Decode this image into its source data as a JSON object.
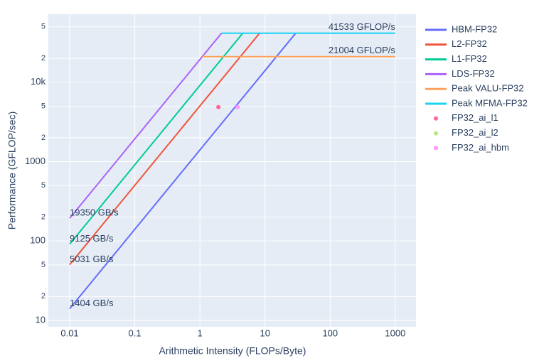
{
  "chart_data": {
    "type": "line",
    "xlabel": "Arithmetic Intensity (FLOPs/Byte)",
    "ylabel": "Performance (GFLOP/sec)",
    "xscale": "log",
    "yscale": "log",
    "xlim": [
      0.0047,
      2080
    ],
    "ylim": [
      8.3,
      72000
    ],
    "xticks": [
      0.01,
      0.1,
      1,
      10,
      100,
      1000
    ],
    "yticks": [
      10,
      {
        "value": 20,
        "label": "2"
      },
      {
        "value": 50,
        "label": "5"
      },
      100,
      {
        "value": 200,
        "label": "2"
      },
      {
        "value": 500,
        "label": "5"
      },
      1000,
      {
        "value": 2000,
        "label": "2"
      },
      {
        "value": 5000,
        "label": "5"
      },
      {
        "value": 10000,
        "label": "10k"
      },
      {
        "value": 20000,
        "label": "2"
      },
      {
        "value": 50000,
        "label": "5"
      }
    ],
    "grid": true,
    "legend": "right",
    "series": [
      {
        "name": "HBM-FP32",
        "color": "#636efa",
        "mode": "lines",
        "label": "1404 GB/s",
        "x": [
          0.01,
          29.58
        ],
        "values": [
          14.04,
          41533
        ]
      },
      {
        "name": "L2-FP32",
        "color": "#ef553b",
        "mode": "lines",
        "label": "5031 GB/s",
        "x": [
          0.01,
          8.255
        ],
        "values": [
          50.31,
          41533
        ]
      },
      {
        "name": "L1-FP32",
        "color": "#00cc96",
        "mode": "lines",
        "label": "9125 GB/s",
        "x": [
          0.01,
          4.552
        ],
        "values": [
          91.25,
          41533
        ]
      },
      {
        "name": "LDS-FP32",
        "color": "#ab63fa",
        "mode": "lines",
        "label": "19350 GB/s",
        "x": [
          0.01,
          2.146
        ],
        "values": [
          193.5,
          41533
        ]
      },
      {
        "name": "Peak VALU-FP32",
        "color": "#ffa15a",
        "mode": "lines",
        "label": "21004 GFLOP/s",
        "x": [
          1.085,
          1000
        ],
        "values": [
          21004,
          21004
        ]
      },
      {
        "name": "Peak MFMA-FP32",
        "color": "#19d3f3",
        "mode": "lines",
        "label": "41533 GFLOP/s",
        "x": [
          2.146,
          1000
        ],
        "values": [
          41533,
          41533
        ]
      },
      {
        "name": "FP32_ai_l1",
        "color": "#ff6692",
        "mode": "markers",
        "x": [
          1.92
        ],
        "values": [
          4860
        ]
      },
      {
        "name": "FP32_ai_l2",
        "color": "#b6e880",
        "mode": "markers",
        "x": [],
        "values": []
      },
      {
        "name": "FP32_ai_hbm",
        "color": "#ff97ff",
        "mode": "markers",
        "x": [
          3.79
        ],
        "values": [
          4860
        ]
      }
    ]
  }
}
